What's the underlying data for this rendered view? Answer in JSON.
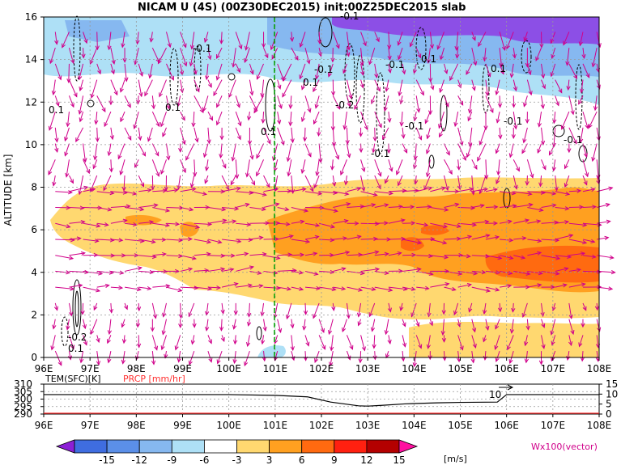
{
  "title": "NICAM U (4S) (00Z30DEC2015) init:00Z25DEC2015 slab",
  "chart_data": [
    {
      "type": "heatmap",
      "title": "NICAM U (4S) (00Z30DEC2015) init:00Z25DEC2015 slab",
      "xlabel": "",
      "ylabel": "ALTITUDE [km]",
      "x_range": [
        96,
        108
      ],
      "y_range": [
        0,
        16
      ],
      "x_ticks": [
        "96E",
        "97E",
        "98E",
        "99E",
        "100E",
        "101E",
        "102E",
        "103E",
        "104E",
        "105E",
        "106E",
        "107E",
        "108E"
      ],
      "y_ticks": [
        "0",
        "2",
        "4",
        "6",
        "8",
        "10",
        "12",
        "14",
        "16"
      ],
      "grid": true,
      "marker_longitude": 101,
      "contour_labels": [
        "-0.1",
        "-0.1",
        "-0.1",
        "-0.1",
        "-0.1",
        "-0.1",
        "-0.1",
        "-0.2",
        "-0.1",
        "0.1",
        "0.1",
        "0.1",
        "0.1",
        "0.1",
        "0.1",
        "-0.2",
        "0.1"
      ],
      "u_regions": [
        {
          "name": "lower easterly band",
          "u_range": [
            3,
            9
          ],
          "lon": [
            96.2,
            108
          ],
          "alt": [
            2.8,
            8.0
          ]
        },
        {
          "name": "core",
          "u_range": [
            9,
            12
          ],
          "lon": [
            106,
            108
          ],
          "alt": [
            4.2,
            5.6
          ]
        },
        {
          "name": "upper layer",
          "u_range": [
            -15,
            -3
          ],
          "lon": [
            96,
            108
          ],
          "alt": [
            12,
            16
          ]
        }
      ]
    },
    {
      "type": "line",
      "title": "",
      "series": [
        {
          "name": "TEM(SFC)[K]",
          "color": "#000000",
          "x": [
            96,
            97,
            98,
            99,
            100,
            101,
            101.7,
            102.2,
            102.8,
            103,
            103.3,
            103.8,
            104.5,
            105,
            105.8,
            106,
            108
          ],
          "y": [
            303,
            303,
            303,
            303,
            303,
            302.5,
            301.5,
            298,
            295.5,
            295.3,
            295.8,
            296.8,
            297.5,
            297.8,
            298,
            303,
            303
          ]
        },
        {
          "name": "PRCP [mm/hr]",
          "color": "#ff3030",
          "x": [
            96,
            108
          ],
          "y": [
            0,
            0
          ]
        }
      ],
      "left_ticks": [
        "310",
        "305",
        "300",
        "295",
        "290"
      ],
      "right_ticks": [
        "15",
        "10",
        "5",
        "0"
      ],
      "x_ticks": [
        "96E",
        "97E",
        "98E",
        "99E",
        "100E",
        "101E",
        "102E",
        "103E",
        "104E",
        "105E",
        "106E",
        "107E",
        "108E"
      ],
      "annotation": "10"
    }
  ],
  "colorbar": {
    "labels": [
      "-15",
      "-12",
      "-9",
      "-6",
      "-3",
      "3",
      "6",
      "9",
      "12",
      "15"
    ],
    "colors": [
      "#8c1fd6",
      "#3f6de0",
      "#5b8fe8",
      "#86b8f0",
      "#aee0f6",
      "#ffffff",
      "#ffd870",
      "#ffa020",
      "#ff6a10",
      "#ff2010",
      "#b40000",
      "#ff10a0"
    ],
    "units": "[m/s]"
  },
  "vector_label": "Wx100(vector)"
}
